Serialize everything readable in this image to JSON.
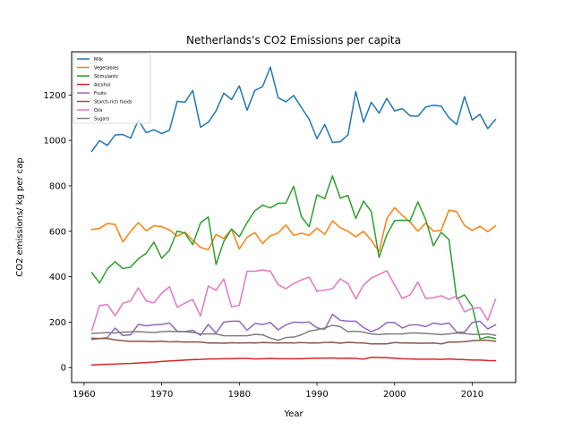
{
  "chart_data": {
    "type": "line",
    "title": "Netherlands's CO2 Emissions per capita",
    "xlabel": "Year",
    "ylabel": "CO2 emissions/ kg per cap",
    "xlim": [
      1958.4,
      2015.6
    ],
    "ylim": [
      -66,
      1390
    ],
    "xticks": [
      1960,
      1970,
      1980,
      1990,
      2000,
      2010
    ],
    "yticks": [
      0,
      200,
      400,
      600,
      800,
      1000,
      1200
    ],
    "grid": false,
    "legend_position": "top-left",
    "x": [
      1961,
      1962,
      1963,
      1964,
      1965,
      1966,
      1967,
      1968,
      1969,
      1970,
      1971,
      1972,
      1973,
      1974,
      1975,
      1976,
      1977,
      1978,
      1979,
      1980,
      1981,
      1982,
      1983,
      1984,
      1985,
      1986,
      1987,
      1988,
      1989,
      1990,
      1991,
      1992,
      1993,
      1994,
      1995,
      1996,
      1997,
      1998,
      1999,
      2000,
      2001,
      2002,
      2003,
      2004,
      2005,
      2006,
      2007,
      2008,
      2009,
      2010,
      2011,
      2012,
      2013
    ],
    "series": [
      {
        "name": "Milk",
        "color": "#1f77b4",
        "values": [
          952,
          999,
          978,
          1024,
          1026,
          1010,
          1090,
          1034,
          1047,
          1030,
          1045,
          1172,
          1168,
          1220,
          1058,
          1080,
          1130,
          1208,
          1180,
          1240,
          1133,
          1220,
          1237,
          1323,
          1188,
          1170,
          1198,
          1145,
          1093,
          1008,
          1070,
          991,
          994,
          1025,
          1215,
          1080,
          1168,
          1120,
          1185,
          1130,
          1140,
          1108,
          1106,
          1147,
          1155,
          1151,
          1100,
          1070,
          1193,
          1090,
          1115,
          1052,
          1092
        ]
      },
      {
        "name": "Vegetables",
        "color": "#ff7f0e",
        "values": [
          608,
          613,
          634,
          630,
          553,
          600,
          638,
          602,
          624,
          620,
          606,
          578,
          596,
          560,
          529,
          518,
          586,
          568,
          609,
          522,
          574,
          594,
          546,
          580,
          592,
          628,
          582,
          592,
          582,
          614,
          586,
          646,
          616,
          600,
          576,
          600,
          560,
          510,
          656,
          704,
          670,
          640,
          600,
          636,
          600,
          604,
          693,
          686,
          626,
          604,
          622,
          598,
          624
        ]
      },
      {
        "name": "Stimulants",
        "color": "#2ca02c",
        "values": [
          418,
          372,
          434,
          466,
          436,
          442,
          479,
          503,
          552,
          481,
          517,
          601,
          592,
          541,
          637,
          663,
          454,
          555,
          610,
          576,
          638,
          690,
          715,
          703,
          723,
          724,
          798,
          664,
          620,
          760,
          744,
          844,
          746,
          758,
          656,
          733,
          687,
          485,
          585,
          647,
          648,
          647,
          729,
          652,
          536,
          595,
          564,
          302,
          320,
          270,
          126,
          135,
          128
        ]
      },
      {
        "name": "Alcohol",
        "color": "#d62728",
        "values": [
          11,
          13,
          14,
          15,
          17,
          18,
          20,
          22,
          24,
          27,
          29,
          31,
          33,
          35,
          36,
          38,
          38,
          39,
          39,
          40,
          40,
          38,
          39,
          40,
          39,
          39,
          39,
          39,
          40,
          41,
          41,
          42,
          40,
          41,
          40,
          37,
          45,
          44,
          43,
          41,
          39,
          38,
          37,
          37,
          37,
          36,
          38,
          36,
          35,
          33,
          33,
          31,
          30
        ]
      },
      {
        "name": "Fruits",
        "color": "#9467bd",
        "values": [
          130,
          128,
          132,
          174,
          141,
          144,
          190,
          184,
          188,
          190,
          196,
          160,
          158,
          164,
          142,
          190,
          152,
          200,
          204,
          204,
          164,
          194,
          190,
          198,
          166,
          188,
          200,
          198,
          200,
          175,
          168,
          234,
          208,
          204,
          204,
          176,
          158,
          172,
          198,
          198,
          174,
          188,
          188,
          180,
          196,
          190,
          196,
          156,
          156,
          198,
          204,
          170,
          188
        ]
      },
      {
        "name": "Starch-rich foods",
        "color": "#8c564b",
        "values": [
          124,
          128,
          128,
          122,
          118,
          115,
          116,
          115,
          114,
          116,
          113,
          114,
          112,
          113,
          112,
          108,
          108,
          107,
          109,
          108,
          109,
          108,
          110,
          109,
          108,
          109,
          108,
          110,
          108,
          108,
          110,
          111,
          107,
          111,
          109,
          108,
          104,
          104,
          104,
          110,
          108,
          108,
          107,
          107,
          108,
          104,
          112,
          112,
          114,
          118,
          120,
          120,
          116
        ]
      },
      {
        "name": "Oils",
        "color": "#e377c2",
        "values": [
          164,
          273,
          278,
          228,
          283,
          293,
          351,
          293,
          285,
          327,
          356,
          265,
          284,
          300,
          227,
          359,
          340,
          390,
          267,
          274,
          424,
          424,
          430,
          424,
          365,
          347,
          370,
          386,
          398,
          336,
          341,
          347,
          390,
          370,
          302,
          363,
          394,
          410,
          426,
          364,
          304,
          320,
          376,
          304,
          308,
          316,
          300,
          315,
          245,
          260,
          264,
          208,
          300
        ]
      },
      {
        "name": "Sugars",
        "color": "#7f7f7f",
        "values": [
          150,
          152,
          154,
          152,
          156,
          157,
          158,
          156,
          154,
          158,
          160,
          158,
          158,
          155,
          148,
          148,
          148,
          140,
          140,
          140,
          140,
          146,
          144,
          130,
          120,
          132,
          134,
          144,
          160,
          166,
          174,
          186,
          180,
          158,
          160,
          156,
          148,
          145,
          148,
          148,
          148,
          152,
          152,
          150,
          148,
          145,
          148,
          152,
          150,
          146,
          146,
          148,
          142
        ]
      }
    ]
  }
}
